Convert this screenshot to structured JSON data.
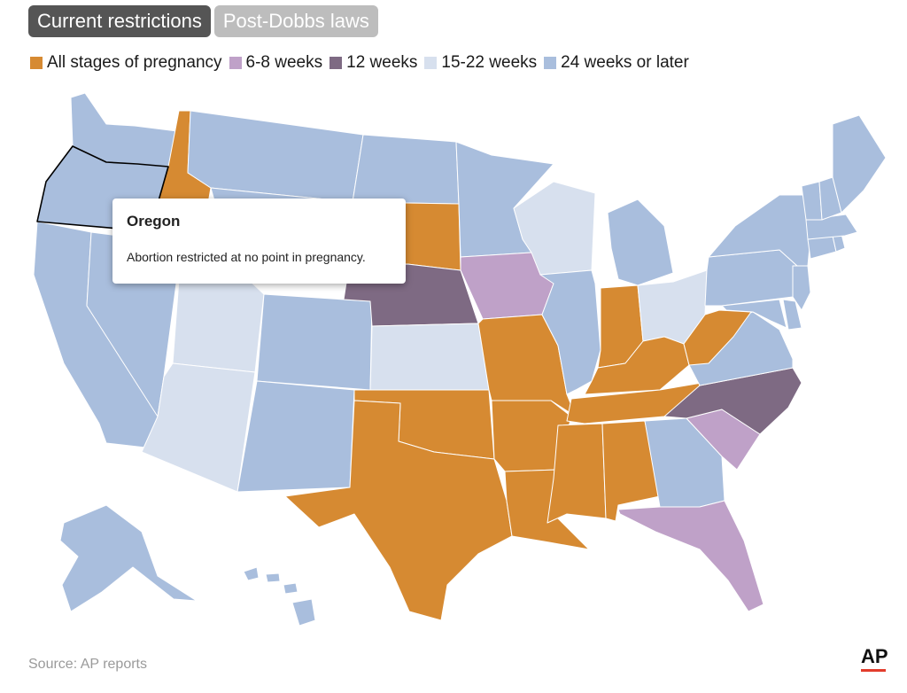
{
  "tabs": [
    {
      "label": "Current restrictions",
      "active": true
    },
    {
      "label": "Post-Dobbs laws",
      "active": false
    }
  ],
  "legend": [
    {
      "label": "All stages of pregnancy",
      "color": "#d68a32"
    },
    {
      "label": "6-8 weeks",
      "color": "#bfa1c8"
    },
    {
      "label": "12 weeks",
      "color": "#7e6a83"
    },
    {
      "label": "15-22 weeks",
      "color": "#d7e0ee"
    },
    {
      "label": "24 weeks or later",
      "color": "#a9bedd"
    }
  ],
  "tooltip": {
    "title": "Oregon",
    "body": "Abortion restricted at no point in pregnancy."
  },
  "source": "Source: AP reports",
  "logo": "AP",
  "map": {
    "selected_state": "Oregon",
    "states": [
      {
        "name": "Washington",
        "category": "24 weeks or later"
      },
      {
        "name": "Oregon",
        "category": "24 weeks or later"
      },
      {
        "name": "California",
        "category": "24 weeks or later"
      },
      {
        "name": "Nevada",
        "category": "24 weeks or later"
      },
      {
        "name": "Idaho",
        "category": "All stages of pregnancy"
      },
      {
        "name": "Montana",
        "category": "24 weeks or later"
      },
      {
        "name": "Wyoming",
        "category": "24 weeks or later"
      },
      {
        "name": "Utah",
        "category": "15-22 weeks"
      },
      {
        "name": "Arizona",
        "category": "15-22 weeks"
      },
      {
        "name": "Colorado",
        "category": "24 weeks or later"
      },
      {
        "name": "New Mexico",
        "category": "24 weeks or later"
      },
      {
        "name": "North Dakota",
        "category": "24 weeks or later"
      },
      {
        "name": "South Dakota",
        "category": "All stages of pregnancy"
      },
      {
        "name": "Nebraska",
        "category": "12 weeks"
      },
      {
        "name": "Kansas",
        "category": "15-22 weeks"
      },
      {
        "name": "Oklahoma",
        "category": "All stages of pregnancy"
      },
      {
        "name": "Texas",
        "category": "All stages of pregnancy"
      },
      {
        "name": "Minnesota",
        "category": "24 weeks or later"
      },
      {
        "name": "Iowa",
        "category": "6-8 weeks"
      },
      {
        "name": "Missouri",
        "category": "All stages of pregnancy"
      },
      {
        "name": "Arkansas",
        "category": "All stages of pregnancy"
      },
      {
        "name": "Louisiana",
        "category": "All stages of pregnancy"
      },
      {
        "name": "Wisconsin",
        "category": "15-22 weeks"
      },
      {
        "name": "Illinois",
        "category": "24 weeks or later"
      },
      {
        "name": "Michigan",
        "category": "24 weeks or later"
      },
      {
        "name": "Indiana",
        "category": "All stages of pregnancy"
      },
      {
        "name": "Ohio",
        "category": "15-22 weeks"
      },
      {
        "name": "Kentucky",
        "category": "All stages of pregnancy"
      },
      {
        "name": "Tennessee",
        "category": "All stages of pregnancy"
      },
      {
        "name": "Mississippi",
        "category": "All stages of pregnancy"
      },
      {
        "name": "Alabama",
        "category": "All stages of pregnancy"
      },
      {
        "name": "Georgia",
        "category": "24 weeks or later"
      },
      {
        "name": "Florida",
        "category": "6-8 weeks"
      },
      {
        "name": "South Carolina",
        "category": "6-8 weeks"
      },
      {
        "name": "North Carolina",
        "category": "12 weeks"
      },
      {
        "name": "Virginia",
        "category": "24 weeks or later"
      },
      {
        "name": "West Virginia",
        "category": "All stages of pregnancy"
      },
      {
        "name": "Pennsylvania",
        "category": "24 weeks or later"
      },
      {
        "name": "New York",
        "category": "24 weeks or later"
      },
      {
        "name": "Maryland",
        "category": "24 weeks or later"
      },
      {
        "name": "Delaware",
        "category": "24 weeks or later"
      },
      {
        "name": "New Jersey",
        "category": "24 weeks or later"
      },
      {
        "name": "Connecticut",
        "category": "24 weeks or later"
      },
      {
        "name": "Rhode Island",
        "category": "24 weeks or later"
      },
      {
        "name": "Massachusetts",
        "category": "24 weeks or later"
      },
      {
        "name": "Vermont",
        "category": "24 weeks or later"
      },
      {
        "name": "New Hampshire",
        "category": "24 weeks or later"
      },
      {
        "name": "Maine",
        "category": "24 weeks or later"
      },
      {
        "name": "Alaska",
        "category": "24 weeks or later"
      },
      {
        "name": "Hawaii",
        "category": "24 weeks or later"
      }
    ]
  }
}
